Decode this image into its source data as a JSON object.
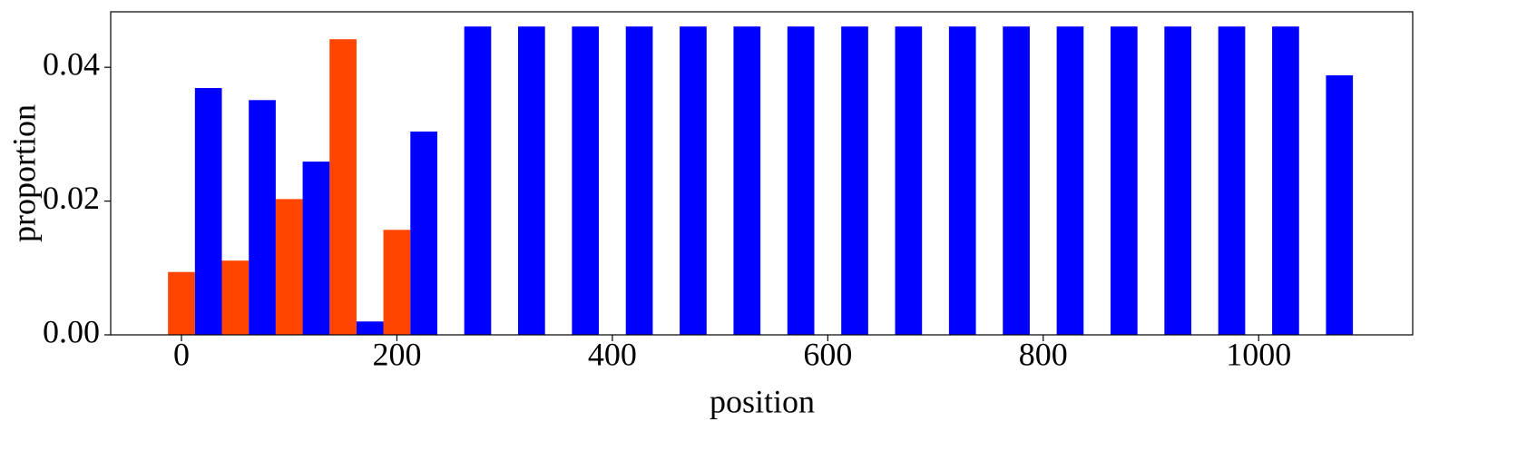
{
  "chart_data": {
    "type": "bar",
    "x_label": "position",
    "y_label": "proportion",
    "x": [
      0,
      50,
      100,
      150,
      200,
      250,
      300,
      350,
      400,
      450,
      500,
      550,
      600,
      650,
      700,
      750,
      800,
      850,
      900,
      950,
      1000,
      1050
    ],
    "series": [
      {
        "color": "#ff4500",
        "values": [
          0.0094,
          0.0111,
          0.0203,
          0.0442,
          0.0157,
          null,
          null,
          null,
          null,
          null,
          null,
          null,
          null,
          null,
          null,
          null,
          null,
          null,
          null,
          null,
          null,
          null
        ]
      },
      {
        "color": "#0000ff",
        "values": [
          0.0369,
          0.0351,
          0.0259,
          0.002,
          0.0304,
          0.0461,
          0.0461,
          0.0461,
          0.0461,
          0.0461,
          0.0461,
          0.0461,
          0.0461,
          0.0461,
          0.0461,
          0.0461,
          0.0461,
          0.0461,
          0.0461,
          0.0461,
          0.0461,
          0.0388
        ]
      }
    ],
    "xlim": [
      -65.7,
      1143
    ],
    "ylim": [
      0,
      0.0483
    ],
    "xticks": [
      0,
      200,
      400,
      600,
      800,
      1000
    ],
    "yticks": [
      {
        "value": 0,
        "label": "0.00"
      },
      {
        "value": 0.02,
        "label": "0.02"
      },
      {
        "value": 0.04,
        "label": "0.04"
      }
    ]
  }
}
